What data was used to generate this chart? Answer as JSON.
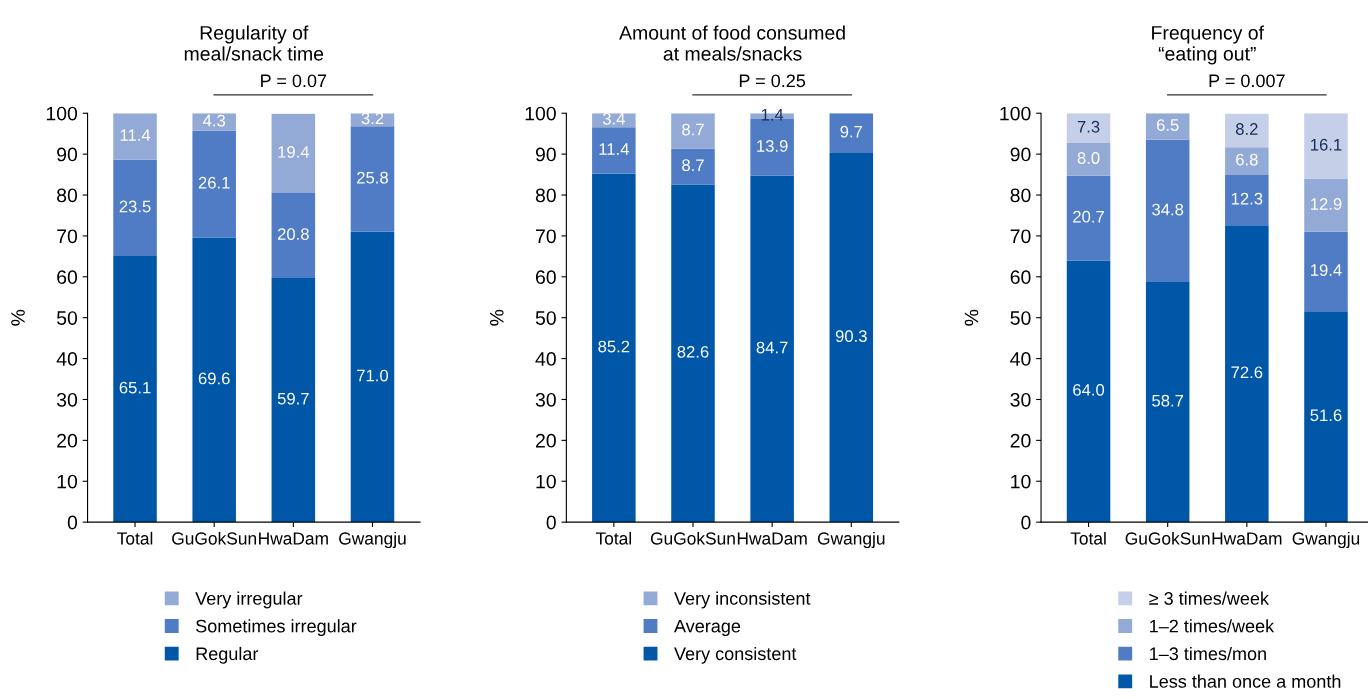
{
  "chart_data": [
    {
      "type": "bar",
      "stacked": true,
      "title": "Regularity of\nmeal/snack time",
      "ylabel": "%",
      "categories": [
        "Total",
        "GuGokSun",
        "HwaDam",
        "Gwangju"
      ],
      "ylim": [
        0,
        100
      ],
      "yticks": [
        0,
        10,
        20,
        30,
        40,
        50,
        60,
        70,
        80,
        90,
        100
      ],
      "grid": false,
      "legend": "bottom",
      "annotations": [
        "P = 0.07"
      ],
      "series": [
        {
          "name": "Regular",
          "color": "#0057a8",
          "values": [
            65.1,
            69.6,
            59.7,
            71.0
          ],
          "value_labels": [
            "65.1",
            "69.6",
            "59.7",
            "71.0"
          ]
        },
        {
          "name": "Sometimes irregular",
          "color": "#4f7cc4",
          "values": [
            23.5,
            26.1,
            20.8,
            25.8
          ],
          "value_labels": [
            "23.5",
            "26.1",
            "20.8",
            "25.8"
          ]
        },
        {
          "name": "Very irregular",
          "color": "#94aad6",
          "values": [
            11.4,
            4.3,
            19.4,
            3.2
          ],
          "value_labels": [
            "11.4",
            "4.3",
            "19.4",
            "3.2"
          ]
        }
      ]
    },
    {
      "type": "bar",
      "stacked": true,
      "title": "Amount of food consumed\nat meals/snacks",
      "ylabel": "%",
      "categories": [
        "Total",
        "GuGokSun",
        "HwaDam",
        "Gwangju"
      ],
      "ylim": [
        0,
        100
      ],
      "yticks": [
        0,
        10,
        20,
        30,
        40,
        50,
        60,
        70,
        80,
        90,
        100
      ],
      "grid": false,
      "legend": "bottom",
      "annotations": [
        "P = 0.25"
      ],
      "series": [
        {
          "name": "Very consistent",
          "color": "#0057a8",
          "values": [
            85.2,
            82.6,
            84.7,
            90.3
          ],
          "value_labels": [
            "85.2",
            "82.6",
            "84.7",
            "90.3"
          ]
        },
        {
          "name": "Average",
          "color": "#4f7cc4",
          "values": [
            11.4,
            8.7,
            13.9,
            9.7
          ],
          "value_labels": [
            "11.4",
            "8.7",
            "13.9",
            "9.7"
          ]
        },
        {
          "name": "Very inconsistent",
          "color": "#94aad6",
          "values": [
            3.4,
            8.7,
            1.4,
            null
          ],
          "value_labels": [
            "3.4",
            "8.7",
            "1.4",
            null
          ]
        }
      ]
    },
    {
      "type": "bar",
      "stacked": true,
      "title": "Frequency of\n“eating out”",
      "ylabel": "%",
      "categories": [
        "Total",
        "GuGokSun",
        "HwaDam",
        "Gwangju"
      ],
      "ylim": [
        0,
        100
      ],
      "yticks": [
        0,
        10,
        20,
        30,
        40,
        50,
        60,
        70,
        80,
        90,
        100
      ],
      "grid": false,
      "legend": "bottom",
      "annotations": [
        "P = 0.007"
      ],
      "series": [
        {
          "name": "Less than once a month",
          "color": "#0057a8",
          "values": [
            64.0,
            58.7,
            72.6,
            51.6
          ],
          "value_labels": [
            "64.0",
            "58.7",
            "72.6",
            "51.6"
          ]
        },
        {
          "name": "1–3 times/mon",
          "color": "#4f7cc4",
          "values": [
            20.7,
            34.8,
            12.3,
            19.4
          ],
          "value_labels": [
            "20.7",
            "34.8",
            "12.3",
            "19.4"
          ]
        },
        {
          "name": "1–2 times/week",
          "color": "#94aad6",
          "values": [
            8.0,
            6.5,
            6.8,
            12.9
          ],
          "value_labels": [
            "8.0",
            "6.5",
            "6.8",
            "12.9"
          ]
        },
        {
          "name": "≥ 3 times/week",
          "color": "#c5cfe8",
          "values": [
            7.3,
            null,
            8.2,
            16.1
          ],
          "value_labels": [
            "7.3",
            null,
            "8.2",
            "16.1"
          ]
        }
      ]
    }
  ]
}
